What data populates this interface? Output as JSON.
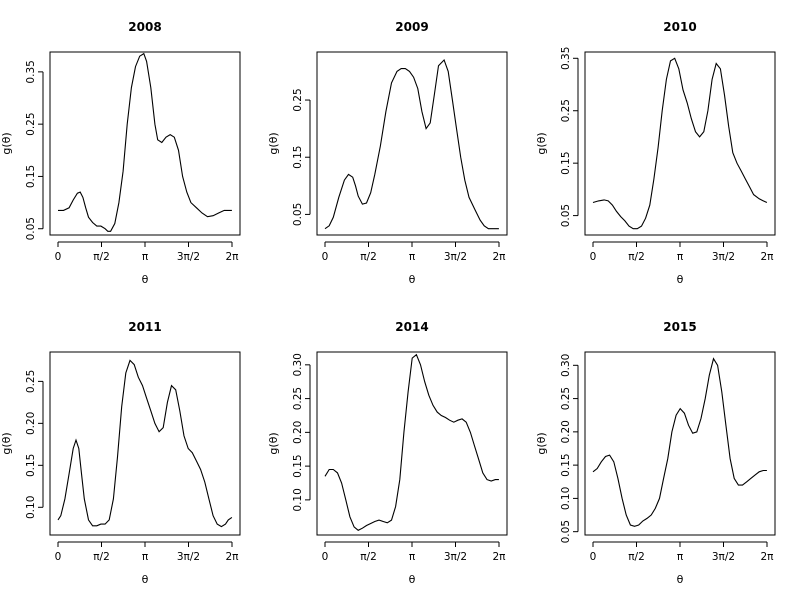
{
  "figure": {
    "xlabel": "θ",
    "ylabel": "g(θ)",
    "x_tick_labels": [
      "0",
      "π/2",
      "π",
      "3π/2",
      "2π"
    ],
    "line_color": "#000000",
    "background": "#ffffff"
  },
  "chart_data": [
    {
      "type": "line",
      "title": "2008",
      "xlabel": "θ",
      "ylabel": "g(θ)",
      "xlim": [
        0,
        6.2832
      ],
      "ylim": [
        0.038,
        0.388
      ],
      "x_ticks": [
        0,
        1.5708,
        3.1416,
        4.7124,
        6.2832
      ],
      "x_tick_labels": [
        "0",
        "π/2",
        "π",
        "3π/2",
        "2π"
      ],
      "y_ticks": [
        0.05,
        0.15,
        0.25,
        0.35
      ],
      "y_tick_labels": [
        "0.05",
        "0.15",
        "0.25",
        "0.35"
      ],
      "x": [
        0,
        0.2,
        0.4,
        0.55,
        0.7,
        0.8,
        0.9,
        1.0,
        1.1,
        1.25,
        1.4,
        1.55,
        1.7,
        1.8,
        1.9,
        2.05,
        2.2,
        2.35,
        2.5,
        2.65,
        2.8,
        2.95,
        3.1,
        3.2,
        3.35,
        3.5,
        3.6,
        3.75,
        3.9,
        4.05,
        4.2,
        4.35,
        4.5,
        4.65,
        4.8,
        5.0,
        5.2,
        5.4,
        5.6,
        5.8,
        6.0,
        6.1,
        6.28
      ],
      "y": [
        0.085,
        0.085,
        0.09,
        0.105,
        0.118,
        0.12,
        0.11,
        0.09,
        0.072,
        0.062,
        0.055,
        0.055,
        0.05,
        0.045,
        0.045,
        0.06,
        0.1,
        0.16,
        0.25,
        0.32,
        0.36,
        0.38,
        0.385,
        0.37,
        0.32,
        0.25,
        0.22,
        0.215,
        0.225,
        0.23,
        0.225,
        0.2,
        0.15,
        0.12,
        0.1,
        0.09,
        0.08,
        0.073,
        0.075,
        0.08,
        0.085,
        0.085,
        0.085
      ]
    },
    {
      "type": "line",
      "title": "2009",
      "xlabel": "θ",
      "ylabel": "g(θ)",
      "xlim": [
        0,
        6.2832
      ],
      "ylim": [
        0.014,
        0.334
      ],
      "x_ticks": [
        0,
        1.5708,
        3.1416,
        4.7124,
        6.2832
      ],
      "x_tick_labels": [
        "0",
        "π/2",
        "π",
        "3π/2",
        "2π"
      ],
      "y_ticks": [
        0.05,
        0.15,
        0.25
      ],
      "y_tick_labels": [
        "0.05",
        "0.15",
        "0.25"
      ],
      "x": [
        0,
        0.15,
        0.3,
        0.5,
        0.7,
        0.85,
        1.0,
        1.1,
        1.2,
        1.35,
        1.5,
        1.65,
        1.8,
        2.0,
        2.2,
        2.4,
        2.6,
        2.75,
        2.9,
        3.05,
        3.2,
        3.35,
        3.5,
        3.65,
        3.8,
        3.95,
        4.1,
        4.3,
        4.45,
        4.6,
        4.75,
        4.9,
        5.05,
        5.2,
        5.4,
        5.6,
        5.75,
        5.9,
        6.0,
        6.15,
        6.28
      ],
      "y": [
        0.025,
        0.03,
        0.045,
        0.08,
        0.11,
        0.12,
        0.115,
        0.1,
        0.082,
        0.068,
        0.07,
        0.088,
        0.12,
        0.17,
        0.23,
        0.28,
        0.3,
        0.305,
        0.305,
        0.3,
        0.29,
        0.27,
        0.23,
        0.2,
        0.21,
        0.26,
        0.31,
        0.32,
        0.3,
        0.25,
        0.2,
        0.15,
        0.11,
        0.08,
        0.06,
        0.04,
        0.03,
        0.025,
        0.025,
        0.025,
        0.025
      ]
    },
    {
      "type": "line",
      "title": "2010",
      "xlabel": "θ",
      "ylabel": "g(θ)",
      "xlim": [
        0,
        6.2832
      ],
      "ylim": [
        0.013,
        0.362
      ],
      "x_ticks": [
        0,
        1.5708,
        3.1416,
        4.7124,
        6.2832
      ],
      "x_tick_labels": [
        "0",
        "π/2",
        "π",
        "3π/2",
        "2π"
      ],
      "y_ticks": [
        0.05,
        0.15,
        0.25,
        0.35
      ],
      "y_tick_labels": [
        "0.05",
        "0.15",
        "0.25",
        "0.35"
      ],
      "x": [
        0,
        0.2,
        0.4,
        0.55,
        0.7,
        0.85,
        1.0,
        1.15,
        1.3,
        1.45,
        1.6,
        1.75,
        1.9,
        2.05,
        2.2,
        2.35,
        2.5,
        2.65,
        2.8,
        2.95,
        3.1,
        3.25,
        3.4,
        3.55,
        3.7,
        3.85,
        4.0,
        4.15,
        4.3,
        4.45,
        4.6,
        4.75,
        4.9,
        5.05,
        5.2,
        5.35,
        5.5,
        5.65,
        5.8,
        6.0,
        6.15,
        6.28
      ],
      "y": [
        0.075,
        0.078,
        0.08,
        0.078,
        0.07,
        0.058,
        0.048,
        0.04,
        0.03,
        0.025,
        0.025,
        0.03,
        0.045,
        0.07,
        0.12,
        0.18,
        0.25,
        0.31,
        0.345,
        0.35,
        0.33,
        0.29,
        0.265,
        0.235,
        0.21,
        0.2,
        0.21,
        0.25,
        0.31,
        0.34,
        0.33,
        0.28,
        0.22,
        0.17,
        0.15,
        0.135,
        0.12,
        0.105,
        0.09,
        0.082,
        0.078,
        0.075
      ]
    },
    {
      "type": "line",
      "title": "2011",
      "xlabel": "θ",
      "ylabel": "g(θ)",
      "xlim": [
        0,
        6.2832
      ],
      "ylim": [
        0.067,
        0.285
      ],
      "x_ticks": [
        0,
        1.5708,
        3.1416,
        4.7124,
        6.2832
      ],
      "x_tick_labels": [
        "0",
        "π/2",
        "π",
        "3π/2",
        "2π"
      ],
      "y_ticks": [
        0.1,
        0.15,
        0.2,
        0.25
      ],
      "y_tick_labels": [
        "0.10",
        "0.15",
        "0.20",
        "0.25"
      ],
      "x": [
        0,
        0.1,
        0.25,
        0.4,
        0.55,
        0.65,
        0.75,
        0.85,
        0.95,
        1.1,
        1.25,
        1.4,
        1.55,
        1.7,
        1.85,
        2.0,
        2.15,
        2.3,
        2.45,
        2.6,
        2.75,
        2.9,
        3.05,
        3.2,
        3.35,
        3.5,
        3.65,
        3.8,
        3.95,
        4.1,
        4.25,
        4.4,
        4.55,
        4.7,
        4.85,
        5.0,
        5.15,
        5.3,
        5.45,
        5.6,
        5.75,
        5.9,
        6.05,
        6.15,
        6.28
      ],
      "y": [
        0.085,
        0.09,
        0.11,
        0.14,
        0.17,
        0.18,
        0.17,
        0.14,
        0.11,
        0.085,
        0.078,
        0.078,
        0.08,
        0.08,
        0.085,
        0.11,
        0.16,
        0.22,
        0.26,
        0.275,
        0.27,
        0.255,
        0.245,
        0.23,
        0.215,
        0.2,
        0.19,
        0.195,
        0.225,
        0.245,
        0.24,
        0.215,
        0.185,
        0.17,
        0.165,
        0.155,
        0.145,
        0.13,
        0.11,
        0.09,
        0.08,
        0.077,
        0.08,
        0.085,
        0.088
      ]
    },
    {
      "type": "line",
      "title": "2014",
      "xlabel": "θ",
      "ylabel": "g(θ)",
      "xlim": [
        0,
        6.2832
      ],
      "ylim": [
        0.048,
        0.319
      ],
      "x_ticks": [
        0,
        1.5708,
        3.1416,
        4.7124,
        6.2832
      ],
      "x_tick_labels": [
        "0",
        "π/2",
        "π",
        "3π/2",
        "2π"
      ],
      "y_ticks": [
        0.1,
        0.15,
        0.2,
        0.25,
        0.3
      ],
      "y_tick_labels": [
        "0.10",
        "0.15",
        "0.20",
        "0.25",
        "0.30"
      ],
      "x": [
        0,
        0.15,
        0.3,
        0.45,
        0.6,
        0.75,
        0.9,
        1.05,
        1.2,
        1.35,
        1.5,
        1.65,
        1.8,
        1.95,
        2.1,
        2.25,
        2.4,
        2.55,
        2.7,
        2.85,
        3.0,
        3.15,
        3.3,
        3.45,
        3.6,
        3.75,
        3.9,
        4.05,
        4.2,
        4.35,
        4.5,
        4.65,
        4.8,
        4.95,
        5.1,
        5.25,
        5.4,
        5.55,
        5.7,
        5.85,
        6.0,
        6.15,
        6.28
      ],
      "y": [
        0.135,
        0.145,
        0.145,
        0.14,
        0.125,
        0.1,
        0.075,
        0.06,
        0.055,
        0.058,
        0.062,
        0.065,
        0.068,
        0.07,
        0.068,
        0.066,
        0.07,
        0.09,
        0.13,
        0.2,
        0.26,
        0.31,
        0.315,
        0.3,
        0.275,
        0.255,
        0.24,
        0.23,
        0.225,
        0.222,
        0.218,
        0.215,
        0.218,
        0.22,
        0.215,
        0.2,
        0.18,
        0.16,
        0.14,
        0.13,
        0.128,
        0.13,
        0.13
      ]
    },
    {
      "type": "line",
      "title": "2015",
      "xlabel": "θ",
      "ylabel": "g(θ)",
      "xlim": [
        0,
        6.2832
      ],
      "ylim": [
        0.045,
        0.32
      ],
      "x_ticks": [
        0,
        1.5708,
        3.1416,
        4.7124,
        6.2832
      ],
      "x_tick_labels": [
        "0",
        "π/2",
        "π",
        "3π/2",
        "2π"
      ],
      "y_ticks": [
        0.05,
        0.1,
        0.15,
        0.2,
        0.25,
        0.3
      ],
      "y_tick_labels": [
        "0.05",
        "0.10",
        "0.15",
        "0.20",
        "0.25",
        "0.30"
      ],
      "x": [
        0,
        0.15,
        0.3,
        0.45,
        0.6,
        0.75,
        0.9,
        1.05,
        1.2,
        1.35,
        1.5,
        1.65,
        1.8,
        1.95,
        2.1,
        2.25,
        2.4,
        2.55,
        2.7,
        2.85,
        3.0,
        3.15,
        3.3,
        3.45,
        3.6,
        3.75,
        3.9,
        4.05,
        4.2,
        4.35,
        4.5,
        4.65,
        4.8,
        4.95,
        5.1,
        5.25,
        5.4,
        5.55,
        5.7,
        5.85,
        6.0,
        6.15,
        6.28
      ],
      "y": [
        0.14,
        0.145,
        0.155,
        0.163,
        0.165,
        0.155,
        0.13,
        0.1,
        0.075,
        0.06,
        0.058,
        0.06,
        0.066,
        0.07,
        0.075,
        0.085,
        0.1,
        0.13,
        0.16,
        0.2,
        0.225,
        0.235,
        0.228,
        0.21,
        0.198,
        0.2,
        0.22,
        0.25,
        0.285,
        0.31,
        0.3,
        0.26,
        0.21,
        0.16,
        0.13,
        0.12,
        0.12,
        0.125,
        0.13,
        0.135,
        0.14,
        0.142,
        0.142
      ]
    }
  ]
}
